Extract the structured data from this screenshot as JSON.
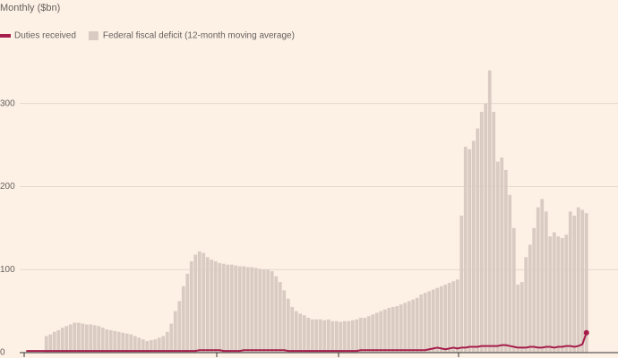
{
  "chart_data": {
    "type": "bar",
    "title": "Monthly ($bn)",
    "categories": [
      null,
      null,
      null,
      null,
      null,
      null,
      null,
      null,
      null,
      null,
      null,
      null,
      null,
      null,
      null,
      null,
      null,
      null,
      null,
      null,
      null,
      null,
      null,
      null,
      null,
      null,
      null,
      null,
      null,
      null,
      null,
      null,
      null,
      null,
      null,
      null,
      null,
      null,
      null,
      null,
      null,
      null,
      null,
      null,
      null,
      null,
      null,
      null,
      null,
      null,
      null,
      null,
      null,
      null,
      null,
      null,
      null,
      null,
      null,
      null,
      null,
      null,
      null,
      null,
      null,
      null,
      null,
      null,
      null,
      null,
      null,
      null,
      null,
      null,
      null,
      null,
      null,
      null,
      null,
      null,
      null,
      null,
      null,
      null,
      null,
      null,
      null,
      null,
      null,
      null,
      null,
      null,
      null,
      null,
      null,
      null,
      null,
      null,
      null,
      null,
      null,
      null,
      null,
      null,
      null,
      null,
      null,
      null,
      null,
      null,
      null,
      null,
      null,
      null,
      null,
      null,
      null,
      null,
      null,
      null,
      null,
      null,
      null,
      null,
      null,
      null,
      null,
      null,
      null,
      null,
      null,
      null,
      null,
      null,
      null,
      null,
      null,
      null,
      null,
      null
    ],
    "series": [
      {
        "name": "Duties received",
        "color": "#a61c4a",
        "chart": "line",
        "values": [
          2,
          2,
          2,
          2,
          2,
          2,
          2,
          2,
          2,
          2,
          2,
          2,
          2,
          2,
          2,
          2,
          2,
          2,
          2,
          2,
          2,
          2,
          2,
          2,
          2,
          2,
          2,
          2,
          2,
          2,
          2,
          2,
          2,
          2,
          2,
          2,
          2,
          2,
          2,
          2,
          2,
          2,
          2,
          3,
          3,
          3,
          3,
          3,
          3,
          2,
          2,
          2,
          2,
          2,
          3,
          3,
          3,
          3,
          3,
          3,
          3,
          3,
          3,
          3,
          3,
          2,
          2,
          2,
          2,
          2,
          2,
          2,
          2,
          2,
          2,
          2,
          2,
          2,
          2,
          2,
          2,
          2,
          2,
          3,
          3,
          3,
          3,
          3,
          3,
          3,
          3,
          3,
          3,
          3,
          3,
          3,
          3,
          3,
          3,
          3,
          4,
          5,
          6,
          5,
          4,
          5,
          6,
          5,
          6,
          6,
          7,
          7,
          7,
          8,
          8,
          8,
          8,
          8,
          9,
          9,
          8,
          7,
          6,
          6,
          6,
          7,
          7,
          6,
          6,
          7,
          7,
          6,
          7,
          7,
          8,
          8,
          7,
          8,
          10,
          24
        ]
      },
      {
        "name": "Federal fiscal deficit (12-month moving average)",
        "color": "#d9cbc1",
        "chart": "bar",
        "values": [
          null,
          null,
          null,
          null,
          null,
          20,
          22,
          25,
          27,
          30,
          32,
          34,
          36,
          36,
          35,
          34,
          34,
          33,
          32,
          30,
          28,
          27,
          26,
          25,
          24,
          23,
          22,
          20,
          18,
          16,
          14,
          15,
          16,
          18,
          20,
          25,
          35,
          50,
          62,
          80,
          95,
          110,
          118,
          122,
          120,
          115,
          112,
          110,
          108,
          107,
          106,
          106,
          105,
          104,
          104,
          103,
          103,
          102,
          101,
          100,
          100,
          98,
          92,
          85,
          75,
          65,
          55,
          50,
          47,
          45,
          42,
          40,
          40,
          40,
          39,
          40,
          38,
          38,
          37,
          38,
          38,
          39,
          40,
          42,
          42,
          44,
          46,
          48,
          50,
          52,
          54,
          55,
          56,
          58,
          60,
          62,
          64,
          66,
          70,
          72,
          74,
          76,
          78,
          80,
          82,
          84,
          86,
          88,
          165,
          248,
          245,
          255,
          270,
          290,
          300,
          340,
          290,
          230,
          235,
          220,
          190,
          150,
          82,
          85,
          115,
          130,
          150,
          175,
          185,
          170,
          140,
          145,
          140,
          138,
          142,
          170,
          165,
          175,
          172,
          168
        ]
      }
    ],
    "ylim": [
      0,
      360
    ],
    "yticks": [
      0,
      100,
      200,
      300
    ],
    "grid": true
  }
}
